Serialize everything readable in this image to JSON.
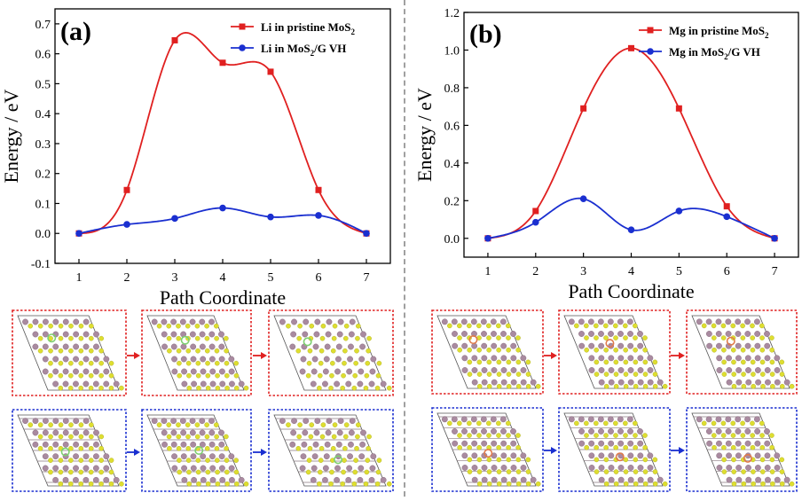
{
  "chart_data": [
    {
      "panel_label": "(a)",
      "type": "line",
      "xlabel": "Path Coordinate",
      "ylabel": "Energy / eV",
      "xlim": [
        0.5,
        7.5
      ],
      "ylim": [
        -0.1,
        0.75
      ],
      "xticks": [
        "1",
        "2",
        "3",
        "4",
        "5",
        "6",
        "7"
      ],
      "yticks": [
        "-0.1",
        "0.0",
        "0.1",
        "0.2",
        "0.3",
        "0.4",
        "0.5",
        "0.6",
        "0.7"
      ],
      "legend_position": "top-right",
      "series": [
        {
          "name": "Li in pristine MoS",
          "name_sub": "2",
          "color": "#e02020",
          "marker": "square",
          "x": [
            1,
            2,
            3,
            4,
            5,
            6,
            7
          ],
          "values": [
            0.0,
            0.145,
            0.645,
            0.57,
            0.54,
            0.145,
            0.0
          ]
        },
        {
          "name": "Li in MoS",
          "name_sub": "2",
          "name_suffix": "/G VH",
          "color": "#1a2fd0",
          "marker": "circle",
          "x": [
            1,
            2,
            3,
            4,
            5,
            6,
            7
          ],
          "values": [
            0.0,
            0.03,
            0.05,
            0.085,
            0.055,
            0.06,
            0.0
          ]
        }
      ]
    },
    {
      "panel_label": "(b)",
      "type": "line",
      "xlabel": "Path Coordinate",
      "ylabel": "Energy / eV",
      "xlim": [
        0.5,
        7.5
      ],
      "ylim": [
        -0.1,
        1.2
      ],
      "xticks": [
        "1",
        "2",
        "3",
        "4",
        "5",
        "6",
        "7"
      ],
      "yticks": [
        "0.0",
        "0.2",
        "0.4",
        "0.6",
        "0.8",
        "1.0",
        "1.2"
      ],
      "legend_position": "top-right",
      "series": [
        {
          "name": "Mg in pristine MoS",
          "name_sub": "2",
          "color": "#e02020",
          "marker": "square",
          "x": [
            1,
            2,
            3,
            4,
            5,
            6,
            7
          ],
          "values": [
            0.0,
            0.145,
            0.69,
            1.01,
            0.69,
            0.17,
            0.0
          ]
        },
        {
          "name": "Mg in MoS",
          "name_sub": "2",
          "name_suffix": "/G VH",
          "color": "#1a2fd0",
          "marker": "circle",
          "x": [
            1,
            2,
            3,
            4,
            5,
            6,
            7
          ],
          "values": [
            0.0,
            0.085,
            0.21,
            0.045,
            0.145,
            0.115,
            0.0
          ]
        }
      ]
    }
  ],
  "structure_panels": {
    "atom_colors": {
      "mo": "#a98aa0",
      "s": "#dede30",
      "li": "#7ed070",
      "mg": "#e07a4a"
    },
    "frame_colors": {
      "red": "#e02020",
      "blue": "#1a2fd0"
    },
    "arrow_colors": {
      "red": "#e02020",
      "blue": "#1a2fd0"
    }
  }
}
